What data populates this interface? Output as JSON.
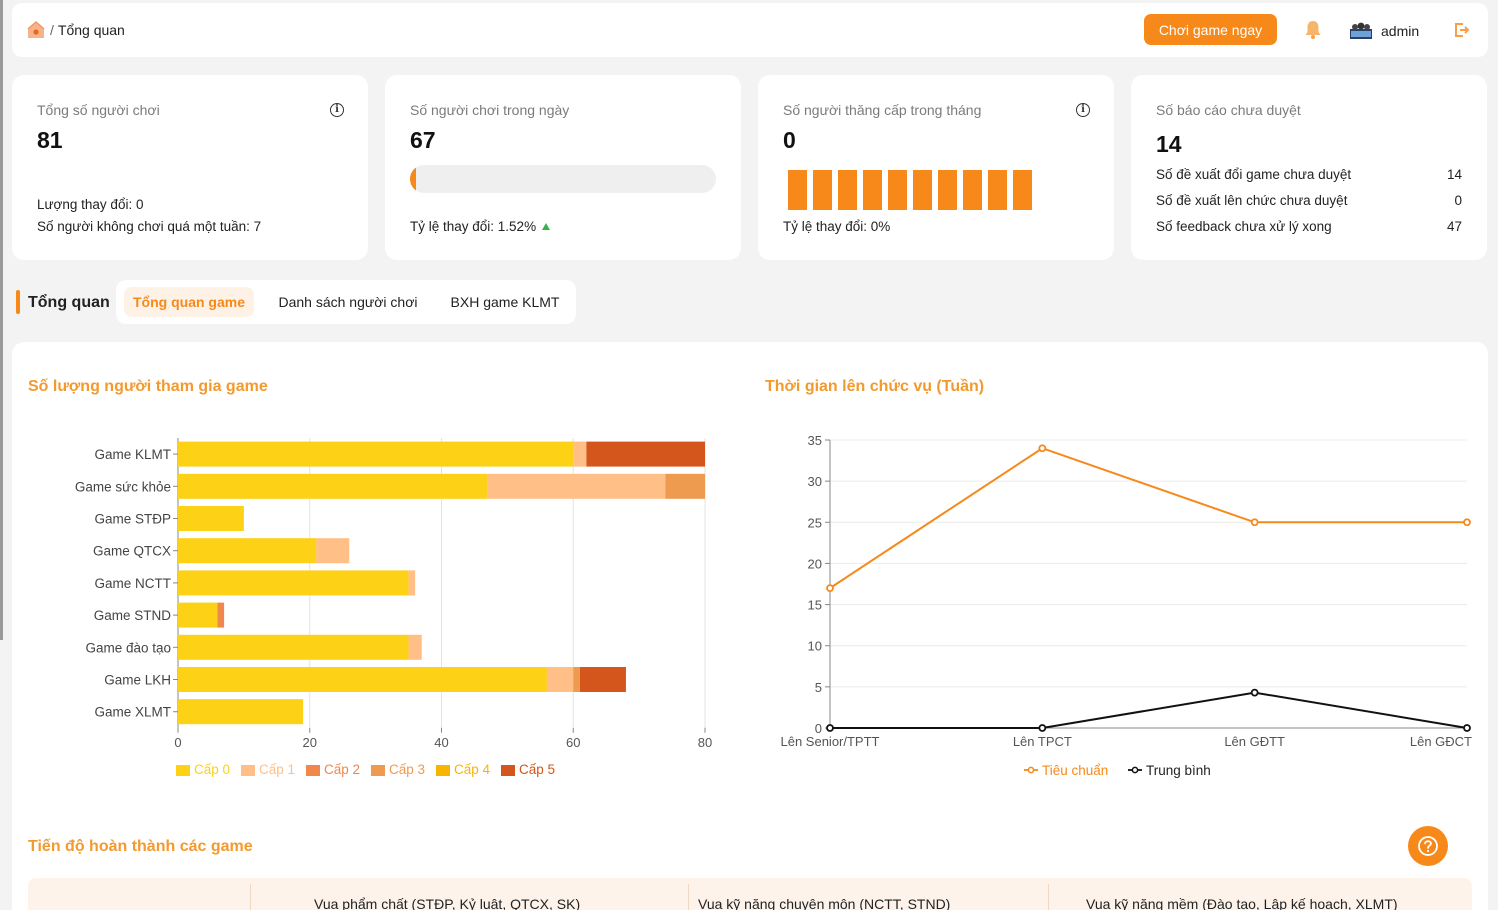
{
  "header": {
    "breadcrumb_sep": "/",
    "breadcrumb_page": "Tổng quan",
    "play_button": "Chơi game ngay",
    "user_name": "admin"
  },
  "stats": [
    {
      "label": "Tổng số người chơi",
      "value": "81",
      "lines": [
        "Lượng thay đổi: 0",
        "Số người không chơi quá một tuần: 7"
      ]
    },
    {
      "label": "Số người chơi trong ngày",
      "value": "67",
      "progress_percent": 1.52,
      "change": "Tỷ lệ thay đổi: 1.52%"
    },
    {
      "label": "Số người thăng cấp trong tháng",
      "value": "0",
      "bar_count": 10,
      "change": "Tỷ lệ thay đổi: 0%"
    },
    {
      "label": "Số báo cáo chưa duyệt",
      "value": "14",
      "rows": [
        {
          "label": "Số đề xuất đổi game chưa duyệt",
          "value": "14"
        },
        {
          "label": "Số đề xuất lên chức chưa duyệt",
          "value": "0"
        },
        {
          "label": "Số feedback chưa xử lý xong",
          "value": "47"
        }
      ]
    }
  ],
  "section": {
    "title": "Tổng quan",
    "tabs": [
      "Tổng quan game",
      "Danh sách người chơi",
      "BXH game KLMT"
    ],
    "active_tab": 0
  },
  "bar_chart_title": "Số lượng người tham gia game",
  "line_chart_title": "Thời gian lên chức vụ (Tuần)",
  "progress_title": "Tiến độ hoàn thành các game",
  "progress_headers": [
    "Vua phẩm chất (STĐP, Kỷ luật, QTCX, SK)",
    "Vua kỹ năng chuyên môn (NCTT, STND)",
    "Vua kỹ năng mềm (Đào tạo, Lập kế hoạch, XLMT)"
  ],
  "chart_data": [
    {
      "type": "bar",
      "orientation": "horizontal",
      "stacked": true,
      "title": "Số lượng người tham gia game",
      "categories": [
        "Game KLMT",
        "Game sức khỏe",
        "Game STĐP",
        "Game QTCX",
        "Game NCTT",
        "Game STND",
        "Game đào tạo",
        "Game LKH",
        "Game XLMT"
      ],
      "series": [
        {
          "name": "Cấp 0",
          "color": "#fcd116",
          "values": [
            60,
            47,
            10,
            21,
            35,
            6,
            35,
            56,
            19
          ]
        },
        {
          "name": "Cấp 1",
          "color": "#ffbf86",
          "values": [
            2,
            27,
            0,
            5,
            1,
            0,
            2,
            4,
            0
          ]
        },
        {
          "name": "Cấp 2",
          "color": "#f0884d",
          "values": [
            0,
            0,
            0,
            0,
            0,
            1,
            0,
            0,
            0
          ]
        },
        {
          "name": "Cấp 3",
          "color": "#ee9a4f",
          "values": [
            0,
            6,
            0,
            0,
            0,
            0,
            0,
            1,
            0
          ]
        },
        {
          "name": "Cấp 4",
          "color": "#f7b500",
          "values": [
            0,
            0,
            0,
            0,
            0,
            0,
            0,
            0,
            0
          ]
        },
        {
          "name": "Cấp 5",
          "color": "#d4561c",
          "values": [
            18,
            0,
            0,
            0,
            0,
            0,
            0,
            7,
            0
          ]
        }
      ],
      "xlim": [
        0,
        80
      ],
      "xticks": [
        0,
        20,
        40,
        60,
        80
      ],
      "grid": true,
      "legend": "bottom"
    },
    {
      "type": "line",
      "title": "Thời gian lên chức vụ (Tuần)",
      "categories": [
        "Lên Senior/TPTT",
        "Lên TPCT",
        "Lên GĐTT",
        "Lên GĐCT"
      ],
      "series": [
        {
          "name": "Tiêu chuẩn",
          "color": "#f7891a",
          "values": [
            17,
            34,
            25,
            25
          ]
        },
        {
          "name": "Trung bình",
          "color": "#111111",
          "values": [
            0,
            0,
            4.3,
            0
          ]
        }
      ],
      "ylim": [
        0,
        35
      ],
      "yticks": [
        0,
        5,
        10,
        15,
        20,
        25,
        30,
        35
      ],
      "grid": true,
      "legend": "bottom"
    }
  ]
}
